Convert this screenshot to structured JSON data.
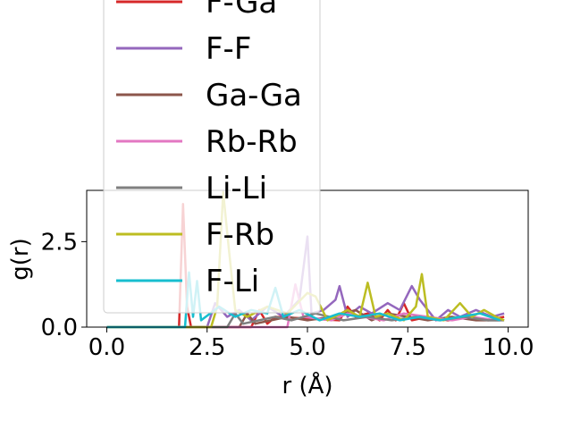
{
  "chart_data": {
    "type": "line",
    "xlabel": "r (Å)",
    "ylabel": "g(r)",
    "xlim": [
      -0.5,
      10.5
    ],
    "ylim": [
      0,
      4.0
    ],
    "x_ticks": [
      "0.0",
      "2.5",
      "5.0",
      "7.5",
      "10.0"
    ],
    "y_ticks": [
      "0.0",
      "2.5"
    ],
    "grid": false,
    "legend_placement": "upper-left, overflowing above the plot",
    "series": [
      {
        "name": "F-Ga",
        "color": "#d62728",
        "x": [
          0.0,
          1.8,
          1.9,
          2.0,
          2.1,
          3.6,
          3.8,
          4.0,
          4.2,
          5.8,
          6.0,
          6.2,
          6.5,
          6.8,
          7.0,
          7.2,
          7.4,
          7.6,
          8.0,
          8.5,
          9.0,
          9.5,
          9.9
        ],
        "y": [
          0.0,
          0.0,
          3.6,
          0.6,
          0.0,
          0.0,
          0.5,
          0.1,
          0.3,
          0.2,
          0.6,
          0.3,
          0.4,
          0.2,
          0.5,
          0.2,
          0.7,
          0.2,
          0.3,
          0.2,
          0.3,
          0.2,
          0.3
        ]
      },
      {
        "name": "F-F",
        "color": "#9467bd",
        "x": [
          0.0,
          2.5,
          2.7,
          3.0,
          3.3,
          3.6,
          4.0,
          4.4,
          4.8,
          5.0,
          5.1,
          5.4,
          5.7,
          5.8,
          6.0,
          6.3,
          6.6,
          7.0,
          7.3,
          7.6,
          7.8,
          8.2,
          8.5,
          8.8,
          9.2,
          9.6,
          9.9
        ],
        "y": [
          0.0,
          0.0,
          0.7,
          0.3,
          0.5,
          0.2,
          0.6,
          0.3,
          0.8,
          2.65,
          0.4,
          0.5,
          0.8,
          1.2,
          0.3,
          0.6,
          0.4,
          0.7,
          0.5,
          1.2,
          0.8,
          0.2,
          0.5,
          0.3,
          0.5,
          0.3,
          0.4
        ]
      },
      {
        "name": "Ga-Ga",
        "color": "#8c564b",
        "x": [
          0.0,
          3.3,
          3.5,
          3.7,
          4.5,
          5.0,
          5.6,
          6.2,
          6.6,
          7.0,
          7.5,
          8.0,
          8.6,
          9.2,
          9.8
        ],
        "y": [
          0.0,
          0.0,
          0.4,
          0.1,
          0.3,
          0.2,
          0.3,
          0.5,
          0.2,
          0.4,
          0.3,
          0.2,
          0.3,
          0.2,
          0.2
        ]
      },
      {
        "name": "Rb-Rb",
        "color": "#e377c2",
        "x": [
          0.0,
          4.5,
          4.7,
          4.9,
          5.6,
          6.0,
          6.4,
          6.9,
          7.4,
          8.0,
          8.6,
          9.1,
          9.7
        ],
        "y": [
          0.0,
          0.0,
          1.25,
          0.3,
          0.2,
          0.4,
          0.3,
          0.2,
          0.4,
          0.3,
          0.2,
          0.3,
          0.2
        ]
      },
      {
        "name": "Li-Li",
        "color": "#7f7f7f",
        "x": [
          0.0,
          3.0,
          3.2,
          3.4,
          4.2,
          4.6,
          5.2,
          5.9,
          6.5,
          7.1,
          7.7,
          8.3,
          8.9,
          9.5,
          9.9
        ],
        "y": [
          0.0,
          0.0,
          0.4,
          0.1,
          0.3,
          0.2,
          0.4,
          0.2,
          0.3,
          0.2,
          0.3,
          0.2,
          0.3,
          0.2,
          0.2
        ]
      },
      {
        "name": "F-Rb",
        "color": "#bcbd22",
        "x": [
          0.0,
          2.6,
          2.75,
          2.9,
          3.05,
          3.2,
          3.5,
          4.0,
          4.5,
          5.0,
          5.2,
          5.5,
          6.0,
          6.3,
          6.5,
          6.7,
          7.0,
          7.4,
          7.7,
          7.85,
          8.0,
          8.4,
          8.8,
          9.1,
          9.4,
          9.7,
          9.9
        ],
        "y": [
          0.0,
          0.0,
          0.6,
          3.95,
          2.2,
          0.5,
          0.3,
          0.6,
          0.4,
          1.0,
          0.9,
          0.2,
          0.5,
          0.3,
          1.3,
          0.3,
          0.4,
          0.2,
          0.6,
          1.55,
          0.3,
          0.2,
          0.7,
          0.3,
          0.5,
          0.3,
          0.2
        ]
      },
      {
        "name": "F-Li",
        "color": "#17becf",
        "x": [
          0.0,
          1.95,
          2.05,
          2.15,
          2.25,
          2.35,
          2.8,
          3.2,
          3.6,
          4.0,
          4.2,
          4.4,
          4.8,
          5.3,
          5.8,
          6.3,
          6.8,
          7.3,
          7.8,
          8.3,
          8.8,
          9.3,
          9.8
        ],
        "y": [
          0.0,
          0.0,
          1.6,
          0.3,
          1.35,
          0.2,
          0.6,
          0.3,
          0.5,
          0.4,
          1.15,
          0.3,
          0.5,
          0.2,
          0.4,
          0.3,
          0.4,
          0.2,
          0.3,
          0.2,
          0.3,
          0.4,
          0.2
        ]
      }
    ]
  }
}
